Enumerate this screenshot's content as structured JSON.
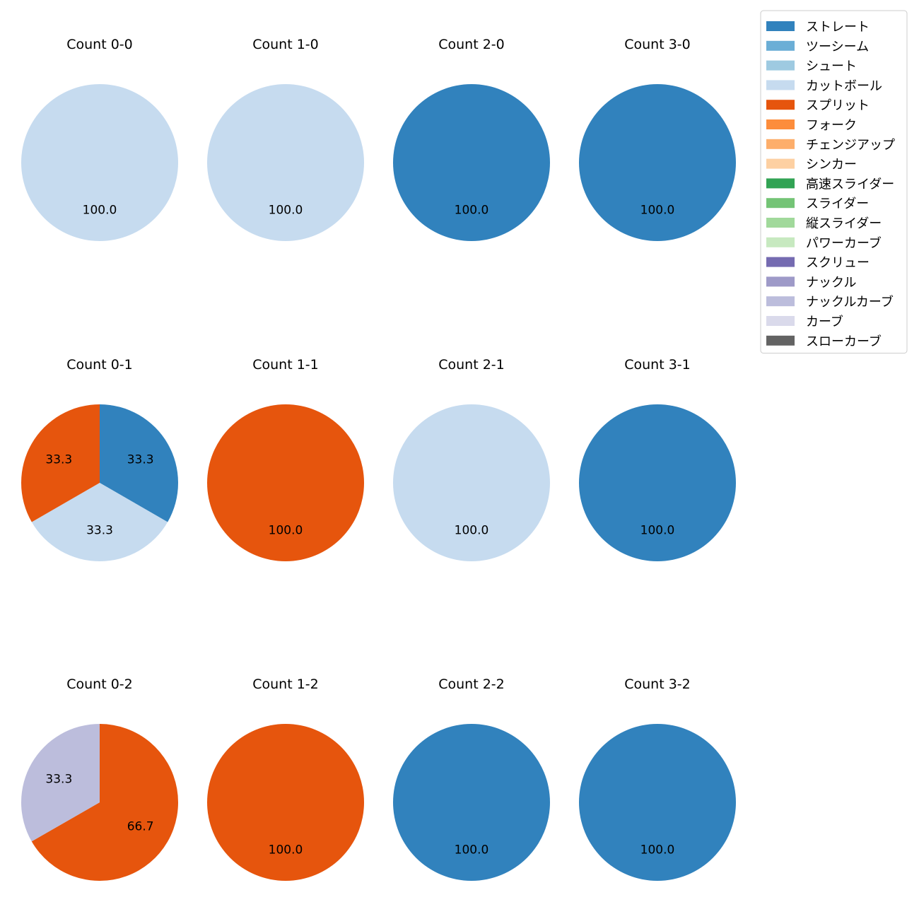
{
  "chart_data": {
    "type": "pie",
    "legend": {
      "location": "top-right",
      "entries": [
        {
          "label": "ストレート",
          "color": "#3182bd"
        },
        {
          "label": "ツーシーム",
          "color": "#6baed6"
        },
        {
          "label": "シュート",
          "color": "#9ecae1"
        },
        {
          "label": "カットボール",
          "color": "#c6dbef"
        },
        {
          "label": "スプリット",
          "color": "#e6550d"
        },
        {
          "label": "フォーク",
          "color": "#fd8d3c"
        },
        {
          "label": "チェンジアップ",
          "color": "#fdae6b"
        },
        {
          "label": "シンカー",
          "color": "#fdd0a2"
        },
        {
          "label": "高速スライダー",
          "color": "#31a354"
        },
        {
          "label": "スライダー",
          "color": "#74c476"
        },
        {
          "label": "縦スライダー",
          "color": "#a1d99b"
        },
        {
          "label": "パワーカーブ",
          "color": "#c7e9c0"
        },
        {
          "label": "スクリュー",
          "color": "#756bb1"
        },
        {
          "label": "ナックル",
          "color": "#9e9ac8"
        },
        {
          "label": "ナックルカーブ",
          "color": "#bcbddc"
        },
        {
          "label": "カーブ",
          "color": "#dadaeb"
        },
        {
          "label": "スローカーブ",
          "color": "#636363"
        }
      ]
    },
    "panels": [
      {
        "title": "Count 0-0",
        "slices": [
          {
            "pitch": "カットボール",
            "value": 100.0,
            "label": "100.0"
          }
        ]
      },
      {
        "title": "Count 1-0",
        "slices": [
          {
            "pitch": "カットボール",
            "value": 100.0,
            "label": "100.0"
          }
        ]
      },
      {
        "title": "Count 2-0",
        "slices": [
          {
            "pitch": "ストレート",
            "value": 100.0,
            "label": "100.0"
          }
        ]
      },
      {
        "title": "Count 3-0",
        "slices": [
          {
            "pitch": "ストレート",
            "value": 100.0,
            "label": "100.0"
          }
        ]
      },
      {
        "title": "Count 0-1",
        "slices": [
          {
            "pitch": "ストレート",
            "value": 33.3,
            "label": "33.3"
          },
          {
            "pitch": "カットボール",
            "value": 33.3,
            "label": "33.3"
          },
          {
            "pitch": "スプリット",
            "value": 33.3,
            "label": "33.3"
          }
        ]
      },
      {
        "title": "Count 1-1",
        "slices": [
          {
            "pitch": "スプリット",
            "value": 100.0,
            "label": "100.0"
          }
        ]
      },
      {
        "title": "Count 2-1",
        "slices": [
          {
            "pitch": "カットボール",
            "value": 100.0,
            "label": "100.0"
          }
        ]
      },
      {
        "title": "Count 3-1",
        "slices": [
          {
            "pitch": "ストレート",
            "value": 100.0,
            "label": "100.0"
          }
        ]
      },
      {
        "title": "Count 0-2",
        "slices": [
          {
            "pitch": "スプリット",
            "value": 66.7,
            "label": "66.7"
          },
          {
            "pitch": "ナックルカーブ",
            "value": 33.3,
            "label": "33.3"
          }
        ]
      },
      {
        "title": "Count 1-2",
        "slices": [
          {
            "pitch": "スプリット",
            "value": 100.0,
            "label": "100.0"
          }
        ]
      },
      {
        "title": "Count 2-2",
        "slices": [
          {
            "pitch": "ストレート",
            "value": 100.0,
            "label": "100.0"
          }
        ]
      },
      {
        "title": "Count 3-2",
        "slices": [
          {
            "pitch": "ストレート",
            "value": 100.0,
            "label": "100.0"
          }
        ]
      }
    ]
  }
}
